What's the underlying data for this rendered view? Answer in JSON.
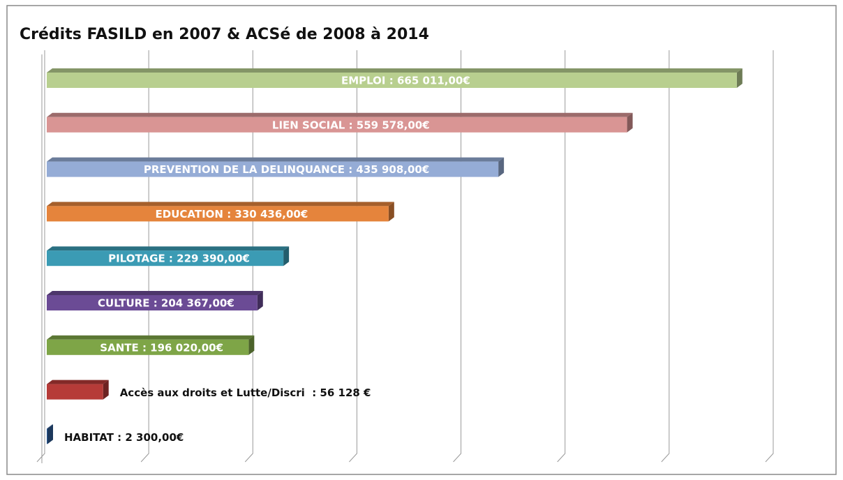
{
  "chart_data": {
    "type": "bar",
    "orientation": "horizontal",
    "title": "Crédits FASILD en 2007 & ACSé de 2008 à 2014",
    "values": [
      665011,
      559578,
      435908,
      330436,
      229390,
      204367,
      196020,
      56128,
      2300
    ],
    "value_labels": [
      "EMPLOI : 665 011,00€",
      "LIEN SOCIAL : 559 578,00€",
      "PREVENTION DE LA DELINQUANCE : 435 908,00€",
      "EDUCATION : 330 436,00€",
      "PILOTAGE : 229 390,00€",
      "CULTURE : 204 367,00€",
      "SANTE : 196 020,00€",
      "Accès aux droits et Lutte/Discri  : 56 128 €",
      "HABITAT : 2 300,00€"
    ],
    "colors": [
      "#b8cf8f",
      "#d99594",
      "#95acd6",
      "#e5843c",
      "#3b9bb4",
      "#6b4b95",
      "#7ea547",
      "#b63b38",
      "#2f5e9a"
    ],
    "xlim": [
      0,
      700000
    ],
    "xticks": [
      0,
      100000,
      200000,
      300000,
      400000,
      500000,
      600000,
      700000
    ],
    "grid": true
  }
}
